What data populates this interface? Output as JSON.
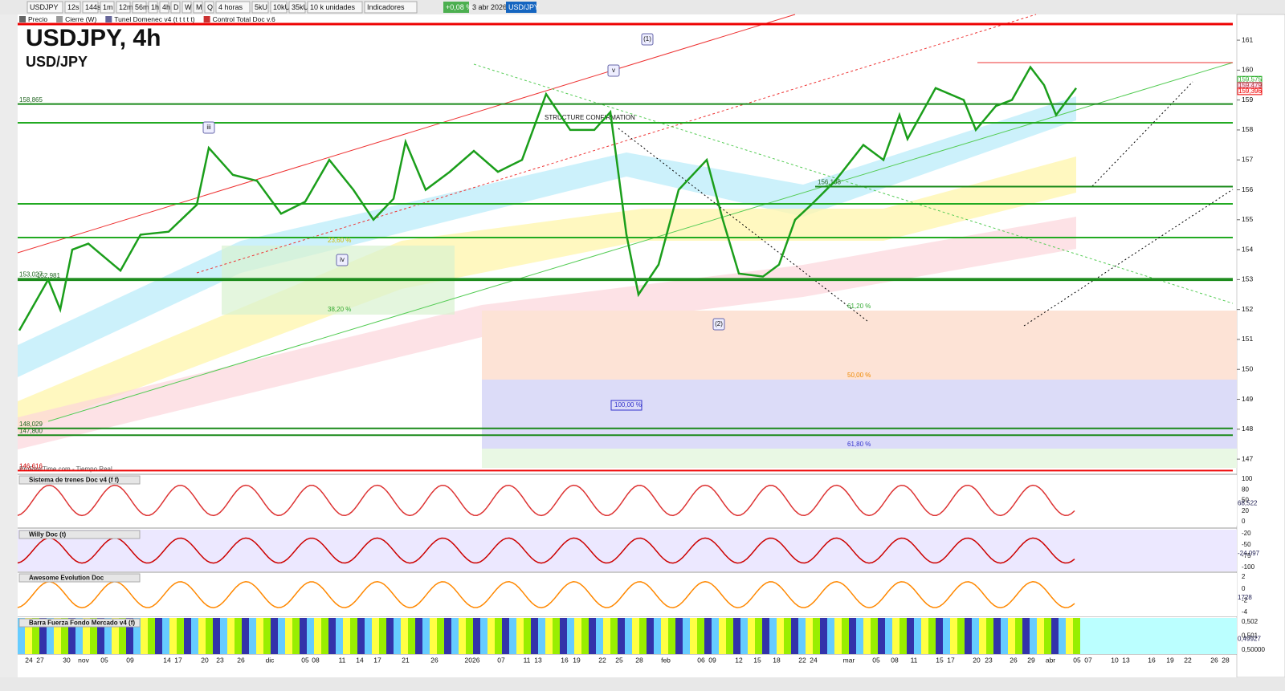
{
  "toolbar": {
    "symbol": "USDJPY",
    "intervals": [
      "12s",
      "144s",
      "1m",
      "12m",
      "56m",
      "1h",
      "4h",
      "D",
      "W",
      "M",
      "Q"
    ],
    "period": "4 horas",
    "units": [
      "5kU",
      "10kU",
      "35kU"
    ],
    "units_select": "10 k unidades",
    "indicators": "Indicadores",
    "change": "+0,08 %",
    "date": "3 abr 2026",
    "pair": "USD/JPY"
  },
  "legend": [
    "Precio",
    "Cierre (W)",
    "Tunel Domenec v4 (t t t t t)",
    "Control Total Doc v.6"
  ],
  "chart": {
    "title": "USDJPY, 4h",
    "subtitle": "USD/JPY",
    "ylim": [
      146.52,
      161.86
    ],
    "yticks": [
      147,
      148,
      149,
      150,
      151,
      152,
      153,
      154,
      155,
      156,
      157,
      158,
      159,
      160,
      161
    ],
    "levels": [
      {
        "value": 158.865,
        "label": "158,865"
      },
      {
        "value": 156.108,
        "label": "156,108"
      },
      {
        "value": 153.027,
        "label": "153,027"
      },
      {
        "value": 152.981,
        "label": "152,981"
      },
      {
        "value": 148.029,
        "label": "148,029"
      },
      {
        "value": 147.8,
        "label": "147,800"
      },
      {
        "value": 146.616,
        "label": "146,616"
      }
    ],
    "fib": [
      "23,60 %",
      "38,20 %",
      "61,20 %",
      "50,00 %",
      "100,00 %",
      "61,80 %"
    ],
    "waves": [
      "(1)",
      "v",
      "iii",
      "iv",
      "(2)"
    ],
    "annotation": "STRUCTURE CONFIRMATION",
    "current": [
      {
        "value": 159.575,
        "label": "159,575"
      },
      {
        "value": 159.479,
        "label": "159,479"
      },
      {
        "value": 159.396,
        "label": "159,396"
      }
    ],
    "source": "ProRealTime.com - Tiempo Real",
    "price": [
      151.3,
      153,
      152,
      154,
      154.2,
      153.3,
      154.5,
      154.6,
      155.5,
      157.4,
      156.5,
      156.3,
      155.2,
      155.6,
      157,
      156,
      155,
      155.7,
      157.6,
      156,
      156.6,
      157.3,
      156.6,
      157,
      159.2,
      158,
      158,
      158.6,
      154.5,
      152.5,
      153.5,
      156,
      157,
      155,
      153.2,
      153.1,
      153.5,
      155,
      155.5,
      156.3,
      157.5,
      157,
      158.5,
      157.7,
      159.4,
      159,
      158,
      158.8,
      159,
      160.1,
      159.5,
      158.5,
      159.4
    ]
  },
  "panels": [
    {
      "name": "Sistema de trenes Doc v4 (f f)",
      "ticks": [
        "100",
        "80",
        "50",
        "20",
        "0"
      ],
      "value": "68,522"
    },
    {
      "name": "Willy Doc (t)",
      "ticks": [
        "-20",
        "-50",
        "-75",
        "-100"
      ],
      "value": "-24,097"
    },
    {
      "name": "Awesome Evolution Doc",
      "ticks": [
        "2",
        "0",
        "-2",
        "-4"
      ],
      "value": "1728"
    },
    {
      "name": "Barra Fuerza Fondo Mercado v4 (f)",
      "ticks": [
        "0,502",
        "0,501",
        "0,50000"
      ],
      "value": "0,49927"
    }
  ],
  "xaxis": [
    "24",
    "27",
    "30",
    "nov",
    "05",
    "09",
    "14",
    "17",
    "20",
    "23",
    "26",
    "dic",
    "05",
    "08",
    "11",
    "14",
    "17",
    "21",
    "26",
    "2026",
    "07",
    "11",
    "13",
    "16",
    "19",
    "22",
    "25",
    "28",
    "feb",
    "06",
    "09",
    "12",
    "15",
    "18",
    "22",
    "24",
    "mar",
    "05",
    "08",
    "11",
    "15",
    "17",
    "20",
    "23",
    "26",
    "29",
    "abr",
    "05",
    "07",
    "10",
    "13",
    "16",
    "19",
    "22",
    "26",
    "28"
  ]
}
